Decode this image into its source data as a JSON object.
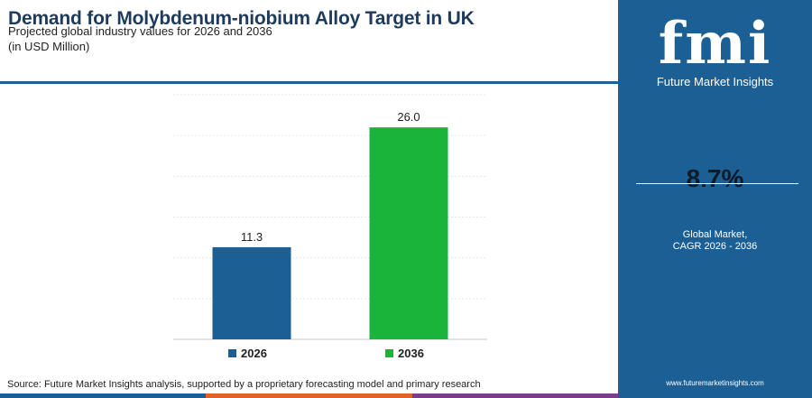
{
  "header": {
    "title": "Demand for Molybdenum-niobium Alloy Target in UK",
    "subtitle": "Projected global industry values for 2026 and 2036",
    "unit": "(in USD Million)"
  },
  "chart_data": {
    "type": "bar",
    "categories": [
      "2026",
      "2036"
    ],
    "values": [
      11.3,
      26.0
    ],
    "value_labels": [
      "11.3",
      "26.0"
    ],
    "colors": [
      "#1b5f95",
      "#19b53b"
    ],
    "ylim": [
      0,
      30
    ],
    "grid": true,
    "legend": {
      "position": "bottom",
      "entries": [
        "2026",
        "2036"
      ]
    }
  },
  "sidebar": {
    "logo_text": "fmi",
    "logo_subtitle": "Future Market Insights",
    "cagr_value": "8.7%",
    "cagr_label_line1": "Global Market,",
    "cagr_label_line2": "CAGR 2026 - 2036",
    "website": "www.futuremarketinsights.com",
    "bg_color": "#1b5f95"
  },
  "footer": {
    "source": "Source: Future Market Insights analysis, supported by a proprietary forecasting model and primary research",
    "bar_colors": [
      "#1b5f95",
      "#e0612a",
      "#7b3b8e"
    ]
  }
}
